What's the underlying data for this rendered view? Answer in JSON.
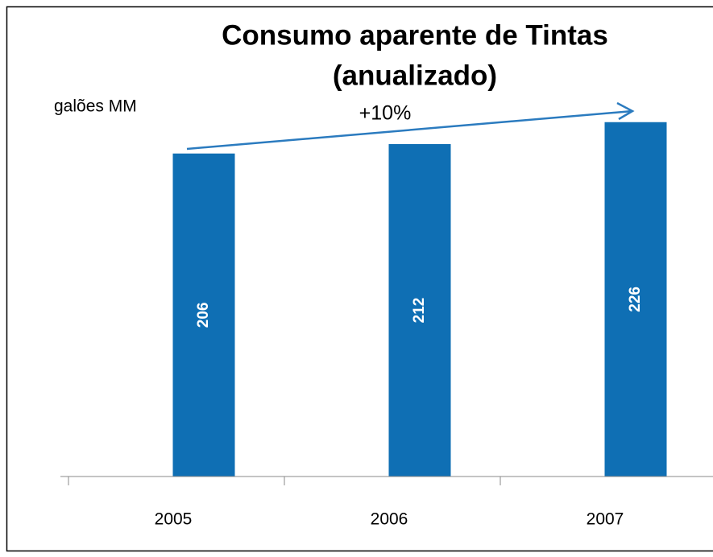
{
  "chart_data": {
    "type": "bar",
    "title": [
      "Consumo aparente de Tintas",
      "(anualizado)"
    ],
    "y_label": "galões MM",
    "annotation": "+10%",
    "categories": [
      "2005",
      "2006",
      "2007"
    ],
    "values": [
      206,
      212,
      226
    ],
    "color": "#0f6fb4",
    "ylim": [
      0,
      250
    ]
  }
}
